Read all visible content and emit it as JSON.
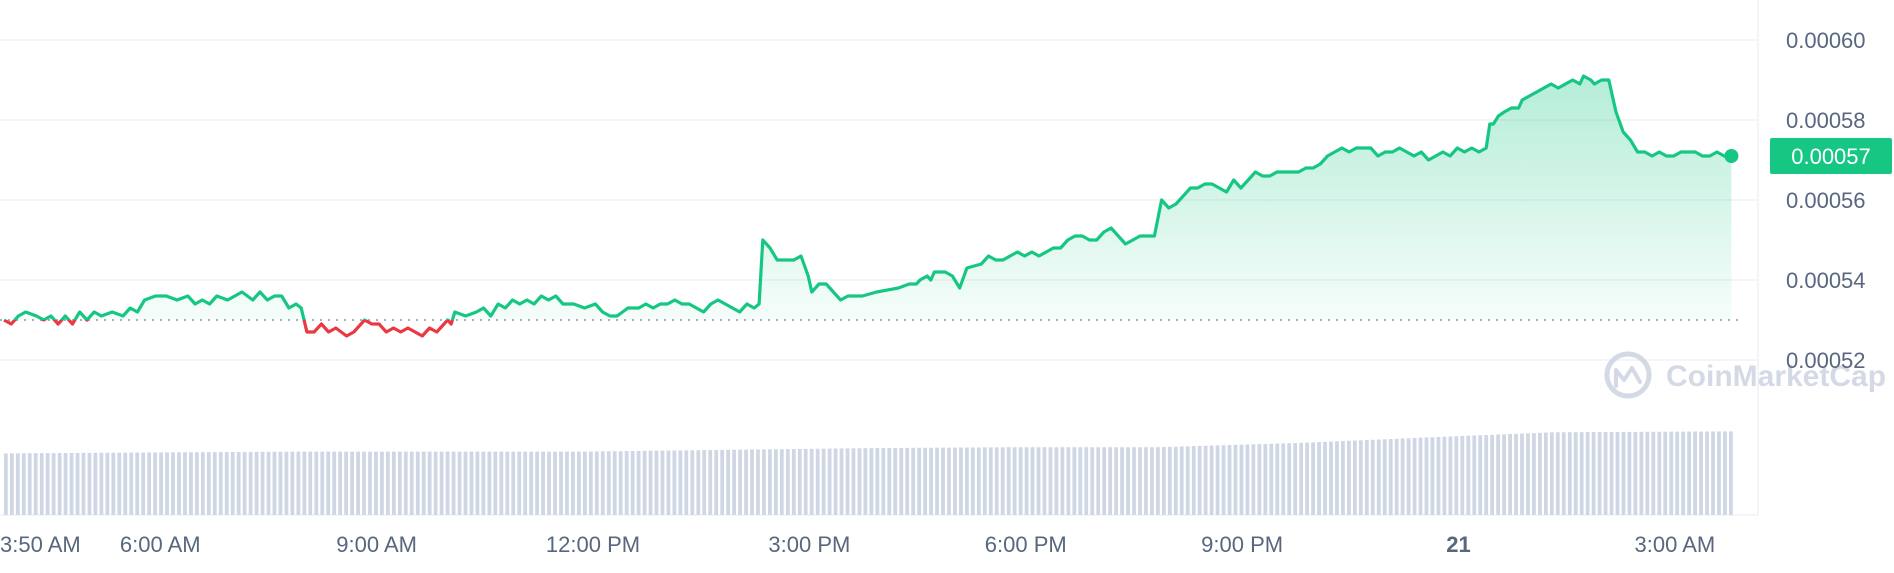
{
  "chart_data": {
    "type": "area",
    "x_labels": [
      "3:50 AM",
      "6:00 AM",
      "9:00 AM",
      "12:00 PM",
      "3:00 PM",
      "6:00 PM",
      "9:00 PM",
      "21",
      "3:00 AM"
    ],
    "y_ticks": [
      "0.00060",
      "0.00058",
      "0.00056",
      "0.00054",
      "0.00052"
    ],
    "ylim": [
      0.000505,
      0.000605
    ],
    "xlim_hours": [
      0,
      24
    ],
    "baseline_price": 0.00053,
    "current_price": 0.000571,
    "current_price_label": "0.00057",
    "colors": {
      "up": "#16c784",
      "down": "#ea3943",
      "fill_top": "#16c784",
      "volume": "#cfd6e4",
      "grid": "#eff2f5",
      "badge": "#16c784"
    },
    "watermark": "CoinMarketCap",
    "price_series": [
      [
        0.0,
        0.00053
      ],
      [
        0.1,
        0.000529
      ],
      [
        0.2,
        0.000531
      ],
      [
        0.3,
        0.000532
      ],
      [
        0.45,
        0.000531
      ],
      [
        0.55,
        0.00053
      ],
      [
        0.65,
        0.000531
      ],
      [
        0.75,
        0.000529
      ],
      [
        0.85,
        0.000531
      ],
      [
        0.95,
        0.000529
      ],
      [
        1.05,
        0.000532
      ],
      [
        1.15,
        0.00053
      ],
      [
        1.25,
        0.000532
      ],
      [
        1.35,
        0.000531
      ],
      [
        1.5,
        0.000532
      ],
      [
        1.65,
        0.000531
      ],
      [
        1.75,
        0.000533
      ],
      [
        1.85,
        0.000532
      ],
      [
        1.95,
        0.000535
      ],
      [
        2.1,
        0.000536
      ],
      [
        2.25,
        0.000536
      ],
      [
        2.4,
        0.000535
      ],
      [
        2.55,
        0.000536
      ],
      [
        2.65,
        0.000534
      ],
      [
        2.75,
        0.000535
      ],
      [
        2.85,
        0.000534
      ],
      [
        2.95,
        0.000536
      ],
      [
        3.1,
        0.000535
      ],
      [
        3.2,
        0.000536
      ],
      [
        3.3,
        0.000537
      ],
      [
        3.45,
        0.000535
      ],
      [
        3.55,
        0.000537
      ],
      [
        3.65,
        0.000535
      ],
      [
        3.75,
        0.000536
      ],
      [
        3.85,
        0.000536
      ],
      [
        3.95,
        0.000533
      ],
      [
        4.05,
        0.000534
      ],
      [
        4.12,
        0.000533
      ],
      [
        4.2,
        0.000527
      ],
      [
        4.3,
        0.000527
      ],
      [
        4.4,
        0.000529
      ],
      [
        4.5,
        0.000527
      ],
      [
        4.6,
        0.000528
      ],
      [
        4.75,
        0.000526
      ],
      [
        4.85,
        0.000527
      ],
      [
        5.0,
        0.00053
      ],
      [
        5.1,
        0.000529
      ],
      [
        5.2,
        0.000529
      ],
      [
        5.3,
        0.000527
      ],
      [
        5.4,
        0.000528
      ],
      [
        5.5,
        0.000527
      ],
      [
        5.6,
        0.000528
      ],
      [
        5.7,
        0.000527
      ],
      [
        5.8,
        0.000526
      ],
      [
        5.9,
        0.000528
      ],
      [
        6.0,
        0.000527
      ],
      [
        6.1,
        0.000529
      ],
      [
        6.15,
        0.00053
      ],
      [
        6.2,
        0.000529
      ],
      [
        6.25,
        0.000532
      ],
      [
        6.4,
        0.000531
      ],
      [
        6.55,
        0.000532
      ],
      [
        6.65,
        0.000533
      ],
      [
        6.75,
        0.000531
      ],
      [
        6.85,
        0.000534
      ],
      [
        6.95,
        0.000533
      ],
      [
        7.05,
        0.000535
      ],
      [
        7.15,
        0.000534
      ],
      [
        7.25,
        0.000535
      ],
      [
        7.35,
        0.000534
      ],
      [
        7.45,
        0.000536
      ],
      [
        7.55,
        0.000535
      ],
      [
        7.65,
        0.000536
      ],
      [
        7.75,
        0.000534
      ],
      [
        7.9,
        0.000534
      ],
      [
        8.05,
        0.000533
      ],
      [
        8.2,
        0.000534
      ],
      [
        8.3,
        0.000532
      ],
      [
        8.4,
        0.000531
      ],
      [
        8.5,
        0.000531
      ],
      [
        8.65,
        0.000533
      ],
      [
        8.8,
        0.000533
      ],
      [
        8.9,
        0.000534
      ],
      [
        9.0,
        0.000533
      ],
      [
        9.1,
        0.000534
      ],
      [
        9.2,
        0.000534
      ],
      [
        9.3,
        0.000535
      ],
      [
        9.4,
        0.000534
      ],
      [
        9.5,
        0.000534
      ],
      [
        9.6,
        0.000533
      ],
      [
        9.7,
        0.000532
      ],
      [
        9.8,
        0.000534
      ],
      [
        9.9,
        0.000535
      ],
      [
        10.0,
        0.000534
      ],
      [
        10.1,
        0.000533
      ],
      [
        10.2,
        0.000532
      ],
      [
        10.3,
        0.000534
      ],
      [
        10.4,
        0.000533
      ],
      [
        10.47,
        0.000534
      ],
      [
        10.52,
        0.00055
      ],
      [
        10.62,
        0.000548
      ],
      [
        10.72,
        0.000545
      ],
      [
        10.85,
        0.000545
      ],
      [
        10.95,
        0.000545
      ],
      [
        11.05,
        0.000546
      ],
      [
        11.15,
        0.000541
      ],
      [
        11.2,
        0.000537
      ],
      [
        11.3,
        0.000539
      ],
      [
        11.4,
        0.000539
      ],
      [
        11.5,
        0.000537
      ],
      [
        11.6,
        0.000535
      ],
      [
        11.7,
        0.000536
      ],
      [
        11.8,
        0.000536
      ],
      [
        11.9,
        0.000536
      ],
      [
        12.1,
        0.000537
      ],
      [
        12.4,
        0.000538
      ],
      [
        12.55,
        0.000539
      ],
      [
        12.65,
        0.000539
      ],
      [
        12.7,
        0.00054
      ],
      [
        12.8,
        0.000541
      ],
      [
        12.85,
        0.00054
      ],
      [
        12.9,
        0.000542
      ],
      [
        13.05,
        0.000542
      ],
      [
        13.15,
        0.000541
      ],
      [
        13.25,
        0.000538
      ],
      [
        13.35,
        0.000543
      ],
      [
        13.55,
        0.000544
      ],
      [
        13.65,
        0.000546
      ],
      [
        13.75,
        0.000545
      ],
      [
        13.85,
        0.000545
      ],
      [
        13.95,
        0.000546
      ],
      [
        14.05,
        0.000547
      ],
      [
        14.15,
        0.000546
      ],
      [
        14.25,
        0.000547
      ],
      [
        14.35,
        0.000546
      ],
      [
        14.45,
        0.000547
      ],
      [
        14.55,
        0.000548
      ],
      [
        14.65,
        0.000548
      ],
      [
        14.75,
        0.00055
      ],
      [
        14.85,
        0.000551
      ],
      [
        14.95,
        0.000551
      ],
      [
        15.05,
        0.00055
      ],
      [
        15.15,
        0.00055
      ],
      [
        15.25,
        0.000552
      ],
      [
        15.35,
        0.000553
      ],
      [
        15.45,
        0.000551
      ],
      [
        15.55,
        0.000549
      ],
      [
        15.65,
        0.00055
      ],
      [
        15.75,
        0.000551
      ],
      [
        15.85,
        0.000551
      ],
      [
        15.95,
        0.000551
      ],
      [
        16.05,
        0.00056
      ],
      [
        16.15,
        0.000558
      ],
      [
        16.25,
        0.000559
      ],
      [
        16.35,
        0.000561
      ],
      [
        16.45,
        0.000563
      ],
      [
        16.55,
        0.000563
      ],
      [
        16.65,
        0.000564
      ],
      [
        16.75,
        0.000564
      ],
      [
        16.85,
        0.000563
      ],
      [
        16.95,
        0.000562
      ],
      [
        17.05,
        0.000565
      ],
      [
        17.15,
        0.000563
      ],
      [
        17.25,
        0.000565
      ],
      [
        17.35,
        0.000567
      ],
      [
        17.45,
        0.000566
      ],
      [
        17.55,
        0.000566
      ],
      [
        17.65,
        0.000567
      ],
      [
        17.75,
        0.000567
      ],
      [
        17.85,
        0.000567
      ],
      [
        17.95,
        0.000567
      ],
      [
        18.05,
        0.000568
      ],
      [
        18.15,
        0.000568
      ],
      [
        18.25,
        0.000569
      ],
      [
        18.35,
        0.000571
      ],
      [
        18.45,
        0.000572
      ],
      [
        18.55,
        0.000573
      ],
      [
        18.65,
        0.000572
      ],
      [
        18.75,
        0.000573
      ],
      [
        18.85,
        0.000573
      ],
      [
        18.95,
        0.000573
      ],
      [
        19.05,
        0.000571
      ],
      [
        19.15,
        0.000572
      ],
      [
        19.25,
        0.000572
      ],
      [
        19.35,
        0.000573
      ],
      [
        19.45,
        0.000572
      ],
      [
        19.55,
        0.000571
      ],
      [
        19.65,
        0.000572
      ],
      [
        19.75,
        0.00057
      ],
      [
        19.85,
        0.000571
      ],
      [
        19.95,
        0.000572
      ],
      [
        20.05,
        0.000571
      ],
      [
        20.15,
        0.000573
      ],
      [
        20.25,
        0.000572
      ],
      [
        20.35,
        0.000573
      ],
      [
        20.45,
        0.000572
      ],
      [
        20.55,
        0.000573
      ],
      [
        20.6,
        0.000579
      ],
      [
        20.65,
        0.000579
      ],
      [
        20.72,
        0.000581
      ],
      [
        20.8,
        0.000582
      ],
      [
        20.9,
        0.000583
      ],
      [
        21.0,
        0.000583
      ],
      [
        21.05,
        0.000585
      ],
      [
        21.15,
        0.000586
      ],
      [
        21.25,
        0.000587
      ],
      [
        21.35,
        0.000588
      ],
      [
        21.45,
        0.000589
      ],
      [
        21.55,
        0.000588
      ],
      [
        21.65,
        0.000589
      ],
      [
        21.75,
        0.00059
      ],
      [
        21.85,
        0.000589
      ],
      [
        21.9,
        0.000591
      ],
      [
        22.0,
        0.00059
      ],
      [
        22.05,
        0.000589
      ],
      [
        22.15,
        0.00059
      ],
      [
        22.25,
        0.00059
      ],
      [
        22.35,
        0.000582
      ],
      [
        22.45,
        0.000577
      ],
      [
        22.55,
        0.000575
      ],
      [
        22.65,
        0.000572
      ],
      [
        22.75,
        0.000572
      ],
      [
        22.85,
        0.000571
      ],
      [
        22.95,
        0.000572
      ],
      [
        23.05,
        0.000571
      ],
      [
        23.15,
        0.000571
      ],
      [
        23.25,
        0.000572
      ],
      [
        23.35,
        0.000572
      ],
      [
        23.45,
        0.000572
      ],
      [
        23.55,
        0.000571
      ],
      [
        23.65,
        0.000571
      ],
      [
        23.75,
        0.000572
      ],
      [
        23.85,
        0.000571
      ],
      [
        23.95,
        0.000571
      ]
    ],
    "volume_levels": [
      [
        0.0,
        0.7
      ],
      [
        2.0,
        0.71
      ],
      [
        4.0,
        0.72
      ],
      [
        6.0,
        0.72
      ],
      [
        8.0,
        0.72
      ],
      [
        10.0,
        0.74
      ],
      [
        12.0,
        0.76
      ],
      [
        14.0,
        0.77
      ],
      [
        16.0,
        0.77
      ],
      [
        18.0,
        0.82
      ],
      [
        20.0,
        0.89
      ],
      [
        21.5,
        0.94
      ],
      [
        23.95,
        0.95
      ]
    ]
  }
}
